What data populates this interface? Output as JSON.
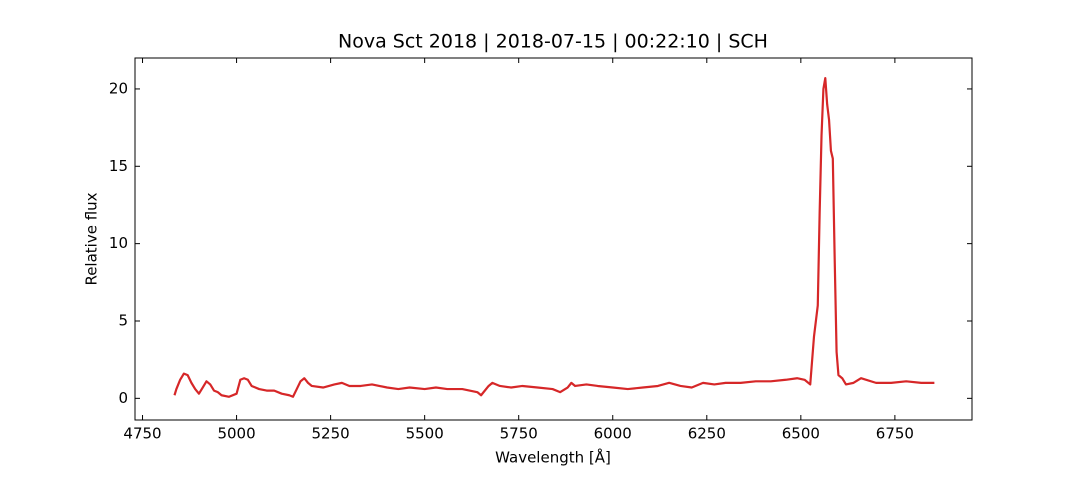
{
  "chart_data": {
    "type": "line",
    "title": "Nova Sct 2018 | 2018-07-15 | 00:22:10 | SCH",
    "x_label": "Wavelength [Å]",
    "y_label": "Relative flux",
    "x": [
      4835,
      4840,
      4850,
      4860,
      4870,
      4880,
      4890,
      4900,
      4910,
      4920,
      4930,
      4940,
      4950,
      4960,
      4980,
      5000,
      5010,
      5020,
      5030,
      5040,
      5060,
      5080,
      5100,
      5120,
      5140,
      5150,
      5160,
      5170,
      5180,
      5190,
      5200,
      5230,
      5260,
      5280,
      5300,
      5330,
      5360,
      5400,
      5430,
      5460,
      5500,
      5530,
      5560,
      5600,
      5640,
      5650,
      5670,
      5680,
      5700,
      5730,
      5760,
      5800,
      5840,
      5860,
      5880,
      5890,
      5900,
      5930,
      5960,
      6000,
      6040,
      6080,
      6120,
      6150,
      6180,
      6210,
      6240,
      6270,
      6300,
      6340,
      6380,
      6420,
      6460,
      6490,
      6510,
      6525,
      6535,
      6545,
      6550,
      6555,
      6560,
      6565,
      6570,
      6575,
      6580,
      6585,
      6590,
      6595,
      6600,
      6610,
      6620,
      6640,
      6660,
      6700,
      6740,
      6780,
      6820,
      6855
    ],
    "series": [
      {
        "name": "Relative flux",
        "color": "#d62728",
        "values": [
          0.2,
          0.6,
          1.2,
          1.6,
          1.5,
          1.0,
          0.6,
          0.3,
          0.7,
          1.1,
          0.9,
          0.5,
          0.4,
          0.2,
          0.1,
          0.3,
          1.2,
          1.3,
          1.2,
          0.8,
          0.6,
          0.5,
          0.5,
          0.3,
          0.2,
          0.1,
          0.6,
          1.1,
          1.3,
          1.0,
          0.8,
          0.7,
          0.9,
          1.0,
          0.8,
          0.8,
          0.9,
          0.7,
          0.6,
          0.7,
          0.6,
          0.7,
          0.6,
          0.6,
          0.4,
          0.2,
          0.8,
          1.0,
          0.8,
          0.7,
          0.8,
          0.7,
          0.6,
          0.4,
          0.7,
          1.0,
          0.8,
          0.9,
          0.8,
          0.7,
          0.6,
          0.7,
          0.8,
          1.0,
          0.8,
          0.7,
          1.0,
          0.9,
          1.0,
          1.0,
          1.1,
          1.1,
          1.2,
          1.3,
          1.2,
          0.9,
          4.0,
          6.0,
          12,
          17,
          20,
          20.7,
          19,
          18,
          16,
          15.5,
          9,
          3,
          1.5,
          1.3,
          0.9,
          1.0,
          1.3,
          1.0,
          1.0,
          1.1,
          1.0,
          1.0
        ]
      }
    ],
    "xlim": [
      4730,
      6955
    ],
    "ylim": [
      -1.4,
      22.0
    ],
    "xticks": [
      4750,
      5000,
      5250,
      5500,
      5750,
      6000,
      6250,
      6500,
      6750
    ],
    "yticks": [
      0,
      5,
      10,
      15,
      20
    ]
  }
}
